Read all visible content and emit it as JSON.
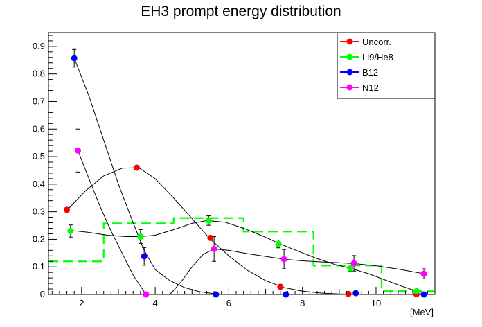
{
  "chart_data": {
    "type": "scatter",
    "title": "EH3 prompt energy distribution",
    "xlabel": "[MeV]",
    "ylabel": "",
    "xlim": [
      1.1,
      11.6
    ],
    "ylim": [
      0,
      0.95
    ],
    "xticks": [
      2,
      4,
      6,
      8,
      10
    ],
    "yticks": [
      0,
      0.1,
      0.2,
      0.3,
      0.4,
      0.5,
      0.6,
      0.7,
      0.8,
      0.9
    ],
    "ytick_labels": [
      "0",
      "0.1",
      "0.2",
      "0.3",
      "0.4",
      "0.5",
      "0.6",
      "0.7",
      "0.8",
      "0.9"
    ],
    "grid": false,
    "legend_position": "top-right",
    "series": [
      {
        "name": "Uncorr.",
        "color": "#ff0000",
        "points": [
          {
            "x": 1.6,
            "y": 0.307,
            "err": 0.008
          },
          {
            "x": 3.5,
            "y": 0.46,
            "err": 0.005
          },
          {
            "x": 5.5,
            "y": 0.205,
            "err": 0.006
          },
          {
            "x": 7.4,
            "y": 0.028,
            "err": 0.004
          },
          {
            "x": 9.25,
            "y": 0.002,
            "err": 0.003
          },
          {
            "x": 11.1,
            "y": 0.001,
            "err": 0.002
          }
        ],
        "curve": [
          [
            1.6,
            0.305
          ],
          [
            2.1,
            0.375
          ],
          [
            2.6,
            0.43
          ],
          [
            3.1,
            0.458
          ],
          [
            3.55,
            0.46
          ],
          [
            4.0,
            0.42
          ],
          [
            4.5,
            0.35
          ],
          [
            5.0,
            0.275
          ],
          [
            5.5,
            0.2
          ],
          [
            6.0,
            0.14
          ],
          [
            6.5,
            0.088
          ],
          [
            7.0,
            0.05
          ],
          [
            7.5,
            0.025
          ],
          [
            8.0,
            0.012
          ],
          [
            8.5,
            0.005
          ],
          [
            9.0,
            0.002
          ],
          [
            9.5,
            0.001
          ],
          [
            10.0,
            0.0
          ],
          [
            10.5,
            0.0
          ],
          [
            11.1,
            0.0
          ]
        ]
      },
      {
        "name": "Li9/He8",
        "color": "#00ff00",
        "points": [
          {
            "x": 1.7,
            "y": 0.23,
            "err": 0.022
          },
          {
            "x": 3.6,
            "y": 0.21,
            "err": 0.025
          },
          {
            "x": 5.45,
            "y": 0.268,
            "err": 0.017
          },
          {
            "x": 7.35,
            "y": 0.183,
            "err": 0.014
          },
          {
            "x": 9.3,
            "y": 0.095,
            "err": 0.012
          },
          {
            "x": 11.1,
            "y": 0.012,
            "err": 0.007
          }
        ],
        "curve": [
          [
            1.7,
            0.232
          ],
          [
            2.2,
            0.225
          ],
          [
            2.7,
            0.215
          ],
          [
            3.2,
            0.21
          ],
          [
            3.6,
            0.21
          ],
          [
            4.0,
            0.215
          ],
          [
            4.5,
            0.235
          ],
          [
            5.0,
            0.258
          ],
          [
            5.4,
            0.268
          ],
          [
            5.9,
            0.262
          ],
          [
            6.4,
            0.24
          ],
          [
            6.9,
            0.213
          ],
          [
            7.4,
            0.183
          ],
          [
            7.9,
            0.156
          ],
          [
            8.4,
            0.13
          ],
          [
            8.9,
            0.108
          ],
          [
            9.3,
            0.095
          ],
          [
            9.8,
            0.075
          ],
          [
            10.3,
            0.05
          ],
          [
            10.7,
            0.03
          ],
          [
            11.1,
            0.012
          ]
        ]
      },
      {
        "name": "B12",
        "color": "#0000ff",
        "points": [
          {
            "x": 1.8,
            "y": 0.857,
            "err": 0.032
          },
          {
            "x": 3.7,
            "y": 0.138,
            "err": 0.032
          },
          {
            "x": 5.65,
            "y": 0.0,
            "err": 0.002
          },
          {
            "x": 7.55,
            "y": 0.0,
            "err": 0.002
          },
          {
            "x": 9.45,
            "y": 0.005,
            "err": 0.006
          },
          {
            "x": 11.3,
            "y": 0.0,
            "err": 0.002
          }
        ],
        "curve": [
          [
            1.8,
            0.857
          ],
          [
            2.2,
            0.72
          ],
          [
            2.6,
            0.56
          ],
          [
            3.0,
            0.4
          ],
          [
            3.4,
            0.26
          ],
          [
            3.7,
            0.16
          ],
          [
            4.0,
            0.09
          ],
          [
            4.4,
            0.05
          ],
          [
            4.8,
            0.025
          ],
          [
            5.2,
            0.01
          ],
          [
            5.65,
            0.002
          ],
          [
            6.2,
            0.0
          ],
          [
            7.0,
            0.0
          ],
          [
            8.0,
            0.0
          ],
          [
            9.0,
            0.0
          ],
          [
            10.0,
            0.0
          ],
          [
            11.3,
            0.0
          ]
        ]
      },
      {
        "name": "N12",
        "color": "#ff00ff",
        "points": [
          {
            "x": 1.9,
            "y": 0.522,
            "err": 0.078
          },
          {
            "x": 3.75,
            "y": 0.0,
            "err": 0.002
          },
          {
            "x": 5.6,
            "y": 0.165,
            "err": 0.045
          },
          {
            "x": 7.5,
            "y": 0.128,
            "err": 0.035
          },
          {
            "x": 9.4,
            "y": 0.113,
            "err": 0.028
          },
          {
            "x": 11.3,
            "y": 0.075,
            "err": 0.018
          }
        ],
        "curve_a": [
          [
            1.9,
            0.522
          ],
          [
            2.2,
            0.42
          ],
          [
            2.5,
            0.32
          ],
          [
            2.8,
            0.23
          ],
          [
            3.1,
            0.15
          ],
          [
            3.4,
            0.07
          ],
          [
            3.75,
            0.0
          ]
        ],
        "curve_b": [
          [
            4.4,
            0.0
          ],
          [
            4.7,
            0.045
          ],
          [
            5.0,
            0.1
          ],
          [
            5.3,
            0.145
          ],
          [
            5.6,
            0.165
          ],
          [
            6.0,
            0.16
          ],
          [
            6.5,
            0.148
          ],
          [
            7.0,
            0.138
          ],
          [
            7.5,
            0.128
          ],
          [
            8.0,
            0.122
          ],
          [
            8.5,
            0.118
          ],
          [
            9.0,
            0.115
          ],
          [
            9.4,
            0.112
          ],
          [
            10.0,
            0.104
          ],
          [
            10.6,
            0.092
          ],
          [
            11.3,
            0.075
          ]
        ]
      }
    ],
    "histogram": {
      "name": "dashed histogram",
      "color": "#00ff00",
      "bins": [
        {
          "x0": 1.1,
          "x1": 2.6,
          "y": 0.12
        },
        {
          "x0": 2.6,
          "x1": 4.5,
          "y": 0.258
        },
        {
          "x0": 4.5,
          "x1": 6.4,
          "y": 0.277
        },
        {
          "x0": 6.4,
          "x1": 8.3,
          "y": 0.228
        },
        {
          "x0": 8.3,
          "x1": 10.15,
          "y": 0.105
        },
        {
          "x0": 10.15,
          "x1": 11.6,
          "y": 0.012
        }
      ]
    }
  }
}
